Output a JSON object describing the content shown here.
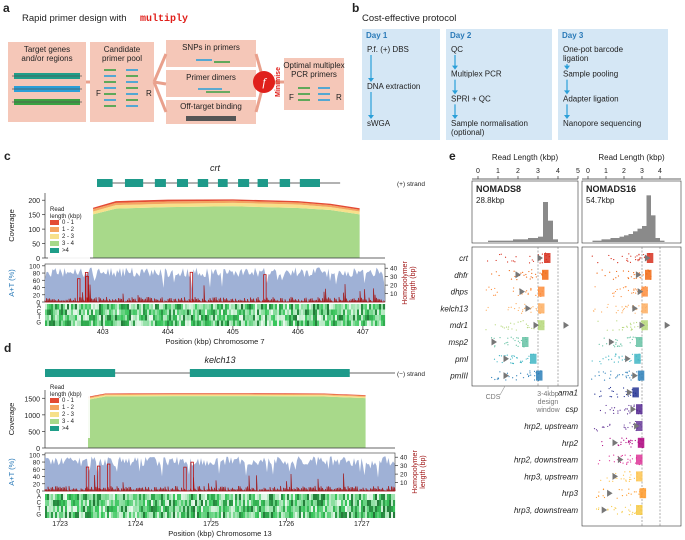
{
  "panel_a": {
    "label": "a",
    "title": "Rapid primer design with",
    "tool": "multiply",
    "target": [
      "Target genes",
      "and/or regions"
    ],
    "candidate": [
      "Candidate",
      "primer pool"
    ],
    "snps": "SNPs in primers",
    "dimers": "Primer dimers",
    "offtarget": "Off-target binding",
    "f": "f",
    "minimise": "Minimise",
    "optimal": [
      "Optimal multiplex",
      "PCR primers"
    ],
    "F": "F",
    "R": "R"
  },
  "panel_b": {
    "label": "b",
    "title": "Cost-effective protocol",
    "days": [
      {
        "name": "Day 1",
        "steps": [
          [
            "P.f. (+) DBS"
          ],
          [
            "DNA extraction"
          ],
          [
            "sWGA"
          ]
        ]
      },
      {
        "name": "Day 2",
        "steps": [
          [
            "QC"
          ],
          [
            "Multiplex PCR"
          ],
          [
            "SPRI + QC"
          ],
          [
            "Sample normalisation",
            "(optional)"
          ]
        ]
      },
      {
        "name": "Day 3",
        "steps": [
          [
            "One-pot barcode",
            "ligation"
          ],
          [
            "Sample pooling"
          ],
          [
            "Adapter ligation"
          ],
          [
            "Nanopore sequencing"
          ]
        ]
      }
    ]
  },
  "chart_data": [
    {
      "type": "area",
      "label": "c",
      "gene": "crt",
      "strand": "(+) strand",
      "gene_span": [
        402.91,
        406.65
      ],
      "exon_starts": [
        402.91,
        403.34,
        403.8,
        404.14,
        404.46,
        404.77,
        405.08,
        405.38,
        405.72,
        406.03
      ],
      "exon_ends": [
        403.15,
        403.62,
        403.97,
        404.31,
        404.62,
        404.92,
        405.25,
        405.54,
        405.88,
        406.34
      ],
      "y_label": "Coverage",
      "legend_title": [
        "Read",
        "length (kbp)"
      ],
      "x_label": "Position (kbp) Chromosome 7",
      "at_label": "A+T (%)",
      "hp_label": [
        "Homopolymer",
        "length (bp)"
      ],
      "bases": [
        "A",
        "C",
        "T",
        "G"
      ],
      "x": [
        402.85,
        403.2,
        404,
        405,
        406,
        406.5,
        406.95
      ],
      "series": [
        {
          "name": ">4",
          "color": "#1f9e89",
          "values": [
            1,
            1,
            1,
            1,
            1,
            1,
            1
          ]
        },
        {
          "name": "3 - 4",
          "color": "#a8d98a",
          "values": [
            150,
            170,
            175,
            178,
            172,
            165,
            150
          ]
        },
        {
          "name": "2 - 3",
          "color": "#f7e08a",
          "values": [
            10,
            12,
            12,
            12,
            12,
            10,
            10
          ]
        },
        {
          "name": "1 - 2",
          "color": "#f4a460",
          "values": [
            8,
            8,
            8,
            7,
            7,
            7,
            6
          ]
        },
        {
          "name": "0 - 1",
          "color": "#e34a33",
          "values": [
            5,
            6,
            6,
            5,
            5,
            5,
            5
          ]
        }
      ],
      "xlim": [
        402.11,
        407.34
      ],
      "xticks": [
        403,
        404,
        405,
        406,
        407
      ],
      "ylim": [
        0,
        225
      ],
      "yticks": [
        0,
        50,
        100,
        150,
        200
      ],
      "at_lim": [
        0,
        105
      ],
      "at_ticks": [
        0,
        20,
        40,
        60,
        80,
        100
      ],
      "hp_lim": [
        0,
        45
      ],
      "hp_ticks": [
        10,
        20,
        30,
        40
      ]
    },
    {
      "type": "area",
      "label": "d",
      "gene": "kelch13",
      "strand": "(−) strand",
      "gene_span": [
        1722.8,
        1727.44
      ],
      "exon_starts": [
        1722.8,
        1724.72
      ],
      "exon_ends": [
        1723.73,
        1726.84
      ],
      "y_label": "Coverage",
      "legend_title": [
        "Read",
        "length (kbp)"
      ],
      "x_label": "Position (kbp) Chromosome 13",
      "at_label": "A+T (%)",
      "hp_label": [
        "Homopolymer",
        "length (bp)"
      ],
      "bases": [
        "A",
        "C",
        "T",
        "G"
      ],
      "x": [
        1723.37,
        1723.6,
        1724.5,
        1725.5,
        1726.5,
        1727.05
      ],
      "series": [
        {
          "name": ">4",
          "color": "#1f9e89",
          "values": [
            5,
            5,
            5,
            5,
            5,
            5
          ]
        },
        {
          "name": "3 - 4",
          "color": "#a8d98a",
          "values": [
            1450,
            1550,
            1560,
            1560,
            1550,
            1500
          ]
        },
        {
          "name": "2 - 3",
          "color": "#f7e08a",
          "values": [
            40,
            40,
            40,
            40,
            40,
            40
          ]
        },
        {
          "name": "1 - 2",
          "color": "#f4a460",
          "values": [
            30,
            30,
            30,
            30,
            30,
            30
          ]
        },
        {
          "name": "0 - 1",
          "color": "#e34a33",
          "values": [
            20,
            20,
            20,
            20,
            20,
            20
          ]
        }
      ],
      "xlim": [
        1722.8,
        1727.44
      ],
      "xticks": [
        1723,
        1724,
        1725,
        1726,
        1727
      ],
      "ylim": [
        0,
        1750
      ],
      "yticks": [
        0,
        500,
        1000,
        1500
      ],
      "at_lim": [
        0,
        105
      ],
      "at_ticks": [
        0,
        20,
        40,
        60,
        80,
        100
      ],
      "hp_lim": [
        0,
        45
      ],
      "hp_ticks": [
        10,
        20,
        30,
        40
      ]
    },
    {
      "type": "strip",
      "label": "e",
      "x_label": "Read Length (kbp)",
      "xlim": [
        0,
        5
      ],
      "design_window": [
        3,
        4
      ],
      "bins": [
        0,
        0.25,
        0.5,
        0.75,
        1,
        1.25,
        1.5,
        1.75,
        2,
        2.25,
        2.5,
        2.75,
        3,
        3.25,
        3.5,
        3.75,
        4,
        4.25,
        4.5,
        4.75,
        5
      ],
      "hist_ylim": [
        0,
        36
      ],
      "cds_label": "CDS",
      "window_label": [
        "3-4kbp",
        "design",
        "window"
      ],
      "genes": [
        "crt",
        "dhfr",
        "dhps",
        "kelch13",
        "mdr1",
        "msp2",
        "pml",
        "pmIII",
        "ama1",
        "csp",
        "hrp2, upstream",
        "hrp2",
        "hrp2, downstream",
        "hrp3, upstream",
        "hrp3",
        "hrp3, downstream"
      ],
      "colors": [
        "#d7301f",
        "#f16913",
        "#fd8d3c",
        "#fdae61",
        "#b5d77a",
        "#66c2a4",
        "#41b6c4",
        "#2c7fb8",
        "#253494",
        "#54278f",
        "#6a3d9a",
        "#ae017e",
        "#dd3497",
        "#fec44f",
        "#fe9929",
        "#f6c945"
      ],
      "panels": [
        {
          "name": "NOMADS8",
          "total": "28.8kbp",
          "xticks": [
            0,
            1,
            2,
            3,
            4,
            5
          ],
          "counts": [
            0,
            0,
            1,
            1,
            1,
            1,
            1,
            2,
            2,
            2,
            3,
            3,
            4,
            30,
            16,
            2,
            0,
            0,
            0,
            0
          ],
          "medians": [
            3.1,
            2,
            2.2,
            2.5,
            2.9,
            0.8,
            1.4,
            1.4
          ],
          "amplicons": [
            3.6,
            3.5,
            3.3,
            3.3,
            3.3,
            2.5,
            2.9,
            3.2
          ],
          "outliers": [
            null,
            null,
            null,
            null,
            4.4,
            null,
            null,
            null
          ]
        },
        {
          "name": "NOMADS16",
          "total": "54.7kbp",
          "xticks": [
            0,
            1,
            2,
            3,
            4
          ],
          "counts": [
            0,
            1,
            1,
            2,
            2,
            3,
            3,
            4,
            5,
            6,
            8,
            10,
            12,
            35,
            20,
            3,
            1,
            0,
            0,
            0
          ],
          "medians": [
            3.3,
            2.8,
            2.9,
            2.6,
            3,
            1.3,
            2.2,
            2.6,
            2.3,
            2.5,
            2.7,
            1.5,
            1.8,
            1.5,
            1.2,
            0.9
          ],
          "amplicons": [
            3.6,
            3.5,
            3.3,
            3.3,
            3.3,
            3,
            2.9,
            3.1,
            2.8,
            3,
            3,
            3.1,
            3,
            3,
            3.2,
            3
          ],
          "outliers": [
            null,
            null,
            null,
            null,
            4.4,
            null,
            null,
            null,
            null,
            null,
            null,
            null,
            null,
            null,
            null,
            null
          ]
        }
      ]
    }
  ]
}
